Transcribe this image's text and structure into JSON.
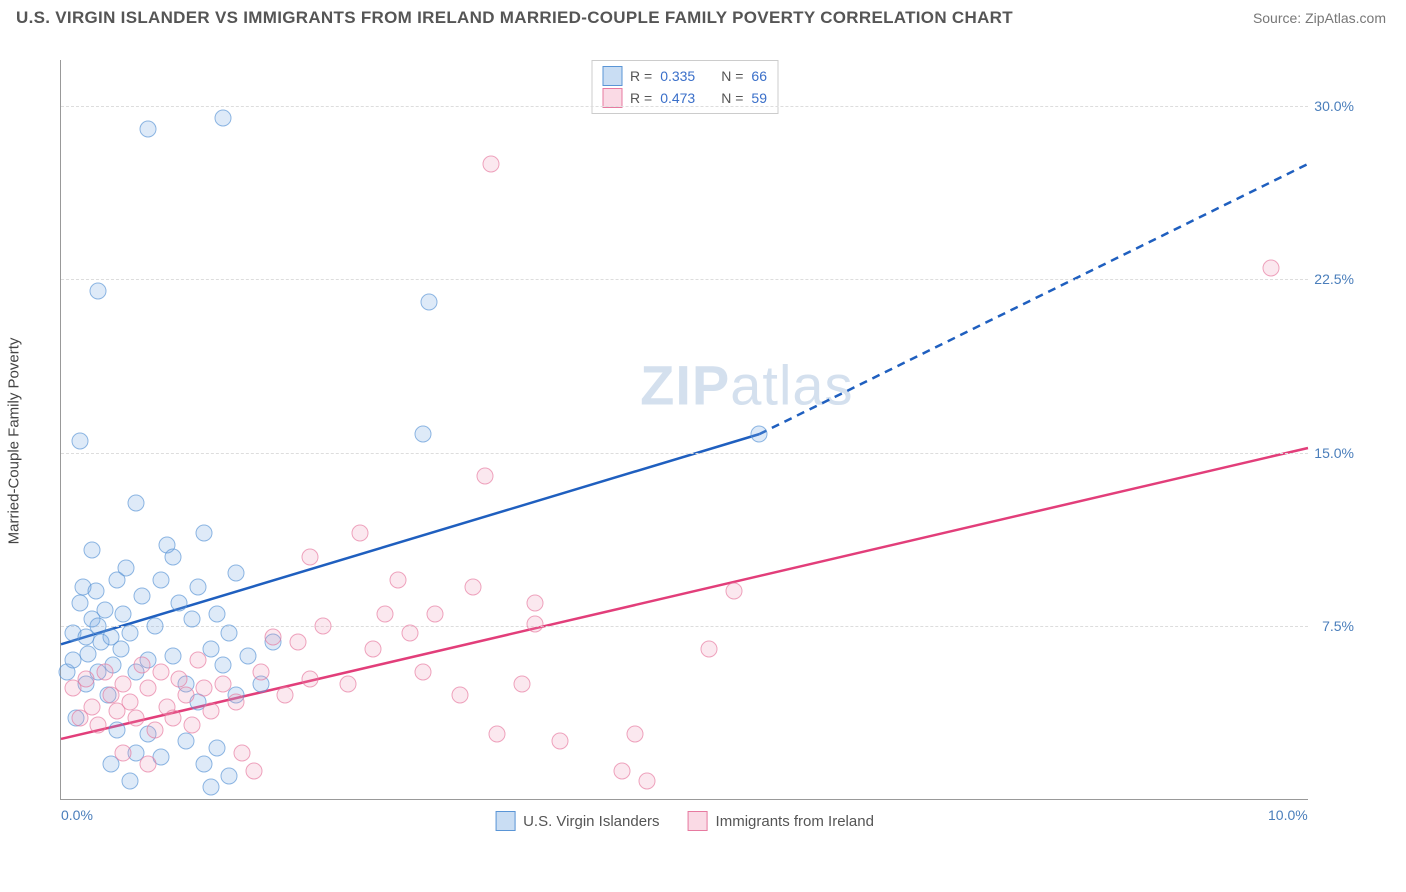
{
  "title": "U.S. VIRGIN ISLANDER VS IMMIGRANTS FROM IRELAND MARRIED-COUPLE FAMILY POVERTY CORRELATION CHART",
  "source": "Source: ZipAtlas.com",
  "watermark_zip": "ZIP",
  "watermark_atlas": "atlas",
  "chart": {
    "type": "scatter",
    "y_axis_label": "Married-Couple Family Poverty",
    "xlim": [
      0,
      10
    ],
    "ylim": [
      0,
      32
    ],
    "x_ticks": [
      {
        "val": 0,
        "label": "0.0%"
      },
      {
        "val": 10,
        "label": "10.0%"
      }
    ],
    "y_ticks": [
      {
        "val": 7.5,
        "label": "7.5%"
      },
      {
        "val": 15,
        "label": "15.0%"
      },
      {
        "val": 22.5,
        "label": "22.5%"
      },
      {
        "val": 30,
        "label": "30.0%"
      }
    ],
    "grid_color": "#dddddd",
    "axis_color": "#999999",
    "background_color": "#ffffff",
    "series": [
      {
        "name": "U.S. Virgin Islanders",
        "color_fill": "rgba(120,170,225,0.35)",
        "color_stroke": "#5a95d6",
        "line_color": "#1f5fbf",
        "r": 0.335,
        "n": 66,
        "marker_size": 15,
        "regression": {
          "x1": 0,
          "y1": 6.7,
          "x2_solid": 5.6,
          "y2_solid": 15.8,
          "x2_dash": 10,
          "y2_dash": 27.5
        },
        "points": [
          [
            0.05,
            5.5
          ],
          [
            0.1,
            7.2
          ],
          [
            0.1,
            6.0
          ],
          [
            0.15,
            8.5
          ],
          [
            0.18,
            9.2
          ],
          [
            0.2,
            5.0
          ],
          [
            0.2,
            7.0
          ],
          [
            0.22,
            6.3
          ],
          [
            0.25,
            7.8
          ],
          [
            0.28,
            9.0
          ],
          [
            0.3,
            5.5
          ],
          [
            0.3,
            7.5
          ],
          [
            0.32,
            6.8
          ],
          [
            0.35,
            8.2
          ],
          [
            0.38,
            4.5
          ],
          [
            0.4,
            7.0
          ],
          [
            0.42,
            5.8
          ],
          [
            0.45,
            9.5
          ],
          [
            0.48,
            6.5
          ],
          [
            0.5,
            8.0
          ],
          [
            0.55,
            7.2
          ],
          [
            0.6,
            5.5
          ],
          [
            0.65,
            8.8
          ],
          [
            0.7,
            6.0
          ],
          [
            0.75,
            7.5
          ],
          [
            0.8,
            9.5
          ],
          [
            0.85,
            11.0
          ],
          [
            0.9,
            6.2
          ],
          [
            0.95,
            8.5
          ],
          [
            1.0,
            5.0
          ],
          [
            1.05,
            7.8
          ],
          [
            1.1,
            9.2
          ],
          [
            1.15,
            11.5
          ],
          [
            1.2,
            6.5
          ],
          [
            1.25,
            8.0
          ],
          [
            1.3,
            5.8
          ],
          [
            1.35,
            7.2
          ],
          [
            1.4,
            9.8
          ],
          [
            0.4,
            1.5
          ],
          [
            0.6,
            2.0
          ],
          [
            0.8,
            1.8
          ],
          [
            0.55,
            0.8
          ],
          [
            1.0,
            2.5
          ],
          [
            1.2,
            0.5
          ],
          [
            0.3,
            22.0
          ],
          [
            0.7,
            29.0
          ],
          [
            1.3,
            29.5
          ],
          [
            0.15,
            15.5
          ],
          [
            0.6,
            12.8
          ],
          [
            0.9,
            10.5
          ],
          [
            1.4,
            4.5
          ],
          [
            1.5,
            6.2
          ],
          [
            1.6,
            5.0
          ],
          [
            1.7,
            6.8
          ],
          [
            1.1,
            4.2
          ],
          [
            0.12,
            3.5
          ],
          [
            0.45,
            3.0
          ],
          [
            0.7,
            2.8
          ],
          [
            0.25,
            10.8
          ],
          [
            0.52,
            10.0
          ],
          [
            2.9,
            15.8
          ],
          [
            2.95,
            21.5
          ],
          [
            5.6,
            15.8
          ],
          [
            1.25,
            2.2
          ],
          [
            1.35,
            1.0
          ],
          [
            1.15,
            1.5
          ]
        ]
      },
      {
        "name": "Immigrants from Ireland",
        "color_fill": "rgba(240,150,180,0.3)",
        "color_stroke": "#e77aa0",
        "line_color": "#e23e7a",
        "r": 0.473,
        "n": 59,
        "marker_size": 15,
        "regression": {
          "x1": 0,
          "y1": 2.6,
          "x2_solid": 10,
          "y2_solid": 15.2
        },
        "points": [
          [
            0.1,
            4.8
          ],
          [
            0.15,
            3.5
          ],
          [
            0.2,
            5.2
          ],
          [
            0.25,
            4.0
          ],
          [
            0.3,
            3.2
          ],
          [
            0.35,
            5.5
          ],
          [
            0.4,
            4.5
          ],
          [
            0.45,
            3.8
          ],
          [
            0.5,
            5.0
          ],
          [
            0.55,
            4.2
          ],
          [
            0.6,
            3.5
          ],
          [
            0.65,
            5.8
          ],
          [
            0.7,
            4.8
          ],
          [
            0.75,
            3.0
          ],
          [
            0.8,
            5.5
          ],
          [
            0.85,
            4.0
          ],
          [
            0.9,
            3.5
          ],
          [
            0.95,
            5.2
          ],
          [
            1.0,
            4.5
          ],
          [
            1.05,
            3.2
          ],
          [
            1.1,
            6.0
          ],
          [
            1.15,
            4.8
          ],
          [
            1.2,
            3.8
          ],
          [
            1.3,
            5.0
          ],
          [
            1.4,
            4.2
          ],
          [
            1.6,
            5.5
          ],
          [
            1.7,
            7.0
          ],
          [
            1.8,
            4.5
          ],
          [
            1.9,
            6.8
          ],
          [
            2.0,
            5.2
          ],
          [
            2.1,
            7.5
          ],
          [
            2.3,
            5.0
          ],
          [
            2.5,
            6.5
          ],
          [
            2.6,
            8.0
          ],
          [
            2.7,
            9.5
          ],
          [
            2.9,
            5.5
          ],
          [
            3.0,
            8.0
          ],
          [
            3.2,
            4.5
          ],
          [
            3.3,
            9.2
          ],
          [
            3.5,
            2.8
          ],
          [
            3.4,
            14.0
          ],
          [
            3.45,
            27.5
          ],
          [
            3.7,
            5.0
          ],
          [
            3.8,
            8.5
          ],
          [
            3.8,
            7.6
          ],
          [
            4.0,
            2.5
          ],
          [
            4.5,
            1.2
          ],
          [
            4.6,
            2.8
          ],
          [
            4.7,
            0.8
          ],
          [
            5.2,
            6.5
          ],
          [
            5.4,
            9.0
          ],
          [
            1.45,
            2.0
          ],
          [
            1.55,
            1.2
          ],
          [
            2.0,
            10.5
          ],
          [
            2.4,
            11.5
          ],
          [
            2.8,
            7.2
          ],
          [
            0.5,
            2.0
          ],
          [
            0.7,
            1.5
          ],
          [
            9.7,
            23.0
          ]
        ]
      }
    ],
    "legend_top": {
      "r_label": "R =",
      "n_label": "N ="
    },
    "legend_bottom": [
      {
        "swatch": "blue",
        "label": "U.S. Virgin Islanders"
      },
      {
        "swatch": "pink",
        "label": "Immigrants from Ireland"
      }
    ]
  }
}
